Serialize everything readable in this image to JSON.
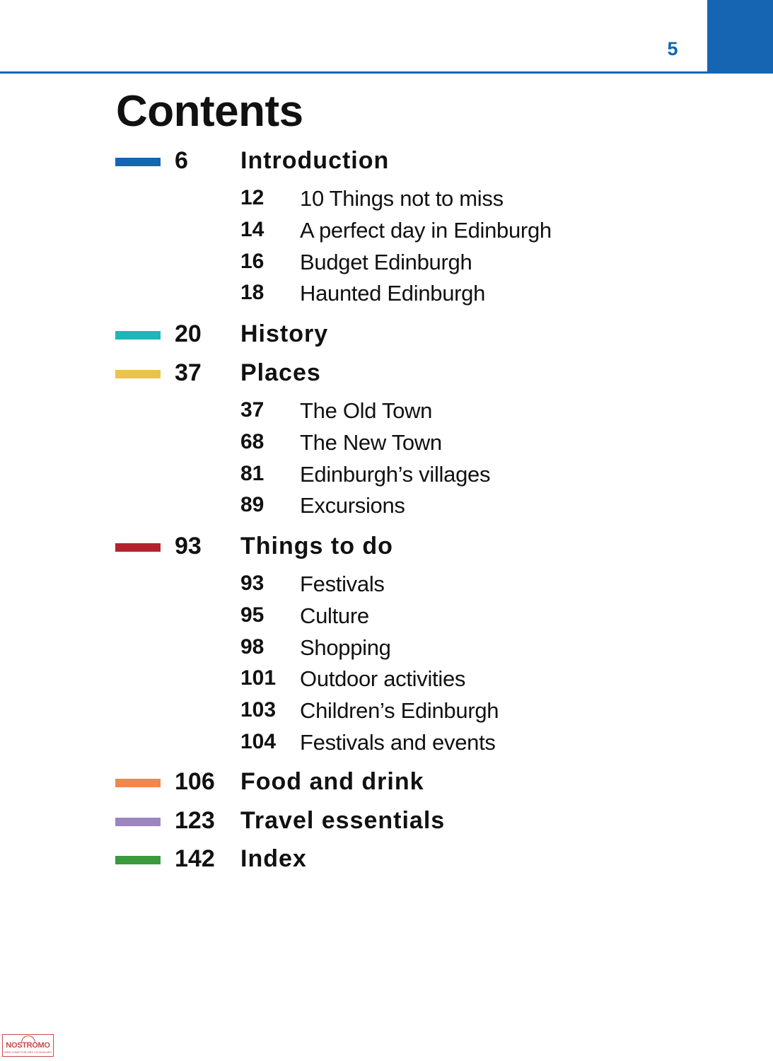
{
  "page_number": "5",
  "title": "Contents",
  "colors": {
    "accent": "#1665b3",
    "introduction": "#1665b3",
    "history": "#1fb5b9",
    "places": "#ecc24e",
    "things_to_do": "#b3222a",
    "food_and_drink": "#f1874a",
    "travel_essentials": "#9c86c0",
    "index": "#3a9a3c",
    "watermark": "#c8494a"
  },
  "sections": [
    {
      "page": "6",
      "title": "Introduction",
      "color": "#1665b3",
      "entries": [
        {
          "page": "12",
          "title": "10 Things not to miss"
        },
        {
          "page": "14",
          "title": "A perfect day in Edinburgh"
        },
        {
          "page": "16",
          "title": "Budget Edinburgh"
        },
        {
          "page": "18",
          "title": "Haunted Edinburgh"
        }
      ]
    },
    {
      "page": "20",
      "title": "History",
      "color": "#1fb5b9",
      "entries": []
    },
    {
      "page": "37",
      "title": "Places",
      "color": "#ecc24e",
      "entries": [
        {
          "page": "37",
          "title": "The Old Town"
        },
        {
          "page": "68",
          "title": "The New Town"
        },
        {
          "page": "81",
          "title": "Edinburgh’s villages"
        },
        {
          "page": "89",
          "title": "Excursions"
        }
      ]
    },
    {
      "page": "93",
      "title": "Things to do",
      "color": "#b3222a",
      "entries": [
        {
          "page": "93",
          "title": "Festivals"
        },
        {
          "page": "95",
          "title": "Culture"
        },
        {
          "page": "98",
          "title": "Shopping"
        },
        {
          "page": "101",
          "title": "Outdoor activities"
        },
        {
          "page": "103",
          "title": "Children’s Edinburgh"
        },
        {
          "page": "104",
          "title": "Festivals and events"
        }
      ]
    },
    {
      "page": "106",
      "title": "Food and drink",
      "color": "#f1874a",
      "entries": []
    },
    {
      "page": "123",
      "title": "Travel essentials",
      "color": "#9c86c0",
      "entries": []
    },
    {
      "page": "142",
      "title": "Index",
      "color": "#3a9a3c",
      "entries": []
    }
  ],
  "watermark": {
    "brand": "NOSTROMO",
    "tagline": "WEB COMPTOIR DES VOYAGEURS",
    "icon": "globe-icon"
  }
}
